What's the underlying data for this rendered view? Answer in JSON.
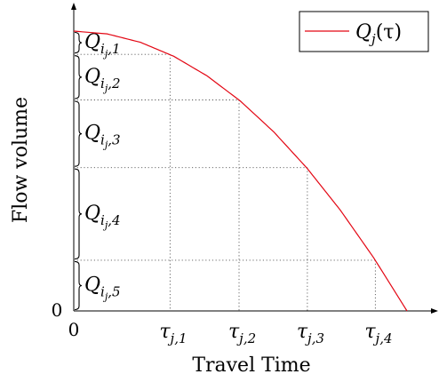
{
  "chart_data": {
    "type": "line",
    "title": "",
    "xlabel": "Travel Time",
    "ylabel": "Flow volume",
    "legend": {
      "position": "top-right",
      "entry_main": "Q",
      "entry_sub": "j",
      "entry_arg": "(τ)"
    },
    "origin_labels": {
      "x": "0",
      "y": "0"
    },
    "xlim": [
      0,
      1
    ],
    "ylim": [
      0,
      1
    ],
    "grid": false,
    "series": [
      {
        "name": "Qj(τ)",
        "color": "#e30613",
        "x": [
          0,
          0.1,
          0.2,
          0.3,
          0.4,
          0.5,
          0.6,
          0.7,
          0.8,
          0.9,
          1.0
        ],
        "y": [
          1.0,
          0.99,
          0.96,
          0.91,
          0.84,
          0.75,
          0.64,
          0.51,
          0.36,
          0.19,
          0.0
        ]
      }
    ],
    "x_ticks": [
      {
        "x": 0.289,
        "main": "τ",
        "sub": "j,1"
      },
      {
        "x": 0.496,
        "main": "τ",
        "sub": "j,2"
      },
      {
        "x": 0.701,
        "main": "τ",
        "sub": "j,3"
      },
      {
        "x": 0.905,
        "main": "τ",
        "sub": "j,4"
      }
    ],
    "brace_boundaries": [
      1.0,
      0.917,
      0.754,
      0.512,
      0.181,
      0.0
    ],
    "brace_labels": [
      {
        "main": "Q",
        "sub": "i",
        "subsub": "j",
        "idx": ",1"
      },
      {
        "main": "Q",
        "sub": "i",
        "subsub": "j",
        "idx": ",2"
      },
      {
        "main": "Q",
        "sub": "i",
        "subsub": "j",
        "idx": ",3"
      },
      {
        "main": "Q",
        "sub": "i",
        "subsub": "j",
        "idx": ",4"
      },
      {
        "main": "Q",
        "sub": "i",
        "subsub": "j",
        "idx": ",5"
      }
    ]
  }
}
